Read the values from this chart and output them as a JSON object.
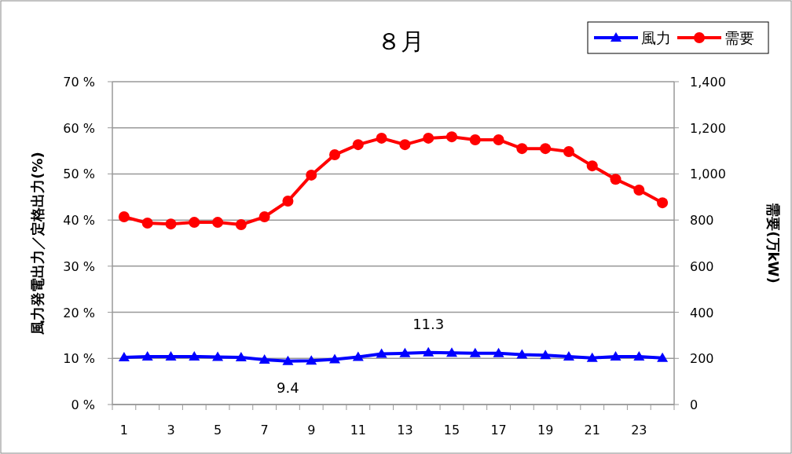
{
  "chart_data": {
    "type": "line",
    "title": "８月",
    "ylabel": "風力発電出力／定格出力(%)",
    "y2label": "需要(万kW)",
    "x": [
      1,
      2,
      3,
      4,
      5,
      6,
      7,
      8,
      9,
      10,
      11,
      12,
      13,
      14,
      15,
      16,
      17,
      18,
      19,
      20,
      21,
      22,
      23,
      24
    ],
    "xlim": [
      0.5,
      24.5
    ],
    "xticks": [
      1,
      3,
      5,
      7,
      9,
      11,
      13,
      15,
      17,
      19,
      21,
      23
    ],
    "ylim": [
      0,
      70
    ],
    "yticks": [
      {
        "value": 0,
        "label": "0 %"
      },
      {
        "value": 10,
        "label": "10 %"
      },
      {
        "value": 20,
        "label": "20 %"
      },
      {
        "value": 30,
        "label": "30 %"
      },
      {
        "value": 40,
        "label": "40 %"
      },
      {
        "value": 50,
        "label": "50 %"
      },
      {
        "value": 60,
        "label": "60 %"
      },
      {
        "value": 70,
        "label": "70 %"
      }
    ],
    "y2lim": [
      0,
      1400
    ],
    "y2ticks": [
      0,
      200,
      400,
      600,
      800,
      {
        "value": 1000,
        "label": "1,000"
      },
      {
        "value": 1200,
        "label": "1,200"
      },
      {
        "value": 1400,
        "label": "1,400"
      }
    ],
    "series": [
      {
        "name": "風力",
        "color": "#0000ff",
        "marker": "triangle",
        "values": [
          10.2,
          10.4,
          10.4,
          10.4,
          10.3,
          10.2,
          9.7,
          9.4,
          9.5,
          9.8,
          10.3,
          11.0,
          11.1,
          11.3,
          11.2,
          11.1,
          11.1,
          10.8,
          10.7,
          10.4,
          10.1,
          10.4,
          10.4,
          10.1
        ]
      },
      {
        "name": "需要",
        "color": "#ff0000",
        "marker": "circle",
        "axis": "y2",
        "values": [
          814,
          787,
          783,
          790,
          790,
          780,
          814,
          882,
          995,
          1083,
          1127,
          1155,
          1127,
          1155,
          1161,
          1148,
          1148,
          1110,
          1110,
          1097,
          1035,
          977,
          930,
          875
        ]
      }
    ],
    "annotations": [
      {
        "text": "9.4",
        "x": 8,
        "y": 9.4
      },
      {
        "text": "11.3",
        "x": 14,
        "y": 11.3
      }
    ],
    "grid": "y",
    "legend": "top right"
  }
}
